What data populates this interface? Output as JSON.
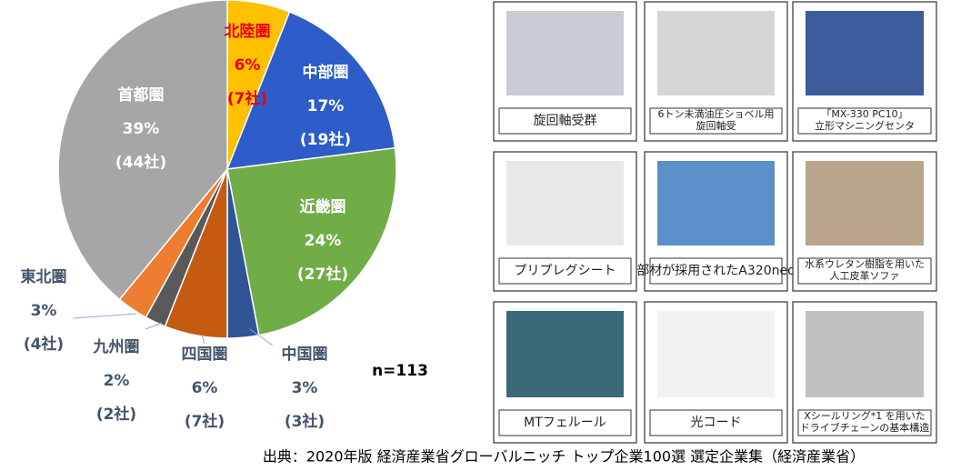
{
  "chart_data": {
    "type": "pie",
    "categories": [
      "北陸圏",
      "中部圏",
      "近畿圏",
      "中国圏",
      "四国圏",
      "九州圏",
      "東北圏",
      "首都圏"
    ],
    "values": [
      6,
      17,
      24,
      3,
      6,
      2,
      3,
      39
    ],
    "value_labels": [
      "6%",
      "17%",
      "24%",
      "3%",
      "6%",
      "2%",
      "3%",
      "39%"
    ],
    "count_labels": [
      "(7社)",
      "(19社)",
      "(27社)",
      "(3社)",
      "(7社)",
      "(2社)",
      "(4社)",
      "(44社)"
    ],
    "colors": [
      "#ffc000",
      "#2e5cc8",
      "#70ad47",
      "#2f5597",
      "#c55a11",
      "#595959",
      "#ed7d31",
      "#a6a6a6"
    ],
    "label_colors": [
      "#e60012",
      "#ffffff",
      "#ffffff",
      "#44546a",
      "#44546a",
      "#44546a",
      "#44546a",
      "#ffffff"
    ],
    "note": "n=113"
  },
  "products": [
    {
      "caption": [
        "旋回軸受群"
      ]
    },
    {
      "caption": [
        "6トン未満油圧ショベル用",
        "旋回軸受"
      ]
    },
    {
      "caption": [
        "「MX-330 PC10」",
        "立形マシニングセンタ"
      ]
    },
    {
      "caption": [
        "プリプレグシート"
      ]
    },
    {
      "caption": [
        "部材が採用されたA320neo"
      ]
    },
    {
      "caption": [
        "水系ウレタン樹脂を用いた",
        "人工皮革ソファ"
      ]
    },
    {
      "caption": [
        "MTフェルール"
      ]
    },
    {
      "caption": [
        "光コード"
      ]
    },
    {
      "caption": [
        "Xシールリング*1 を用いた",
        "ドライブチェーンの基本構造"
      ]
    }
  ],
  "source": "出典：2020年版 経済産業省グローバルニッチ トップ企業100選 選定企業集（経済産業省）"
}
